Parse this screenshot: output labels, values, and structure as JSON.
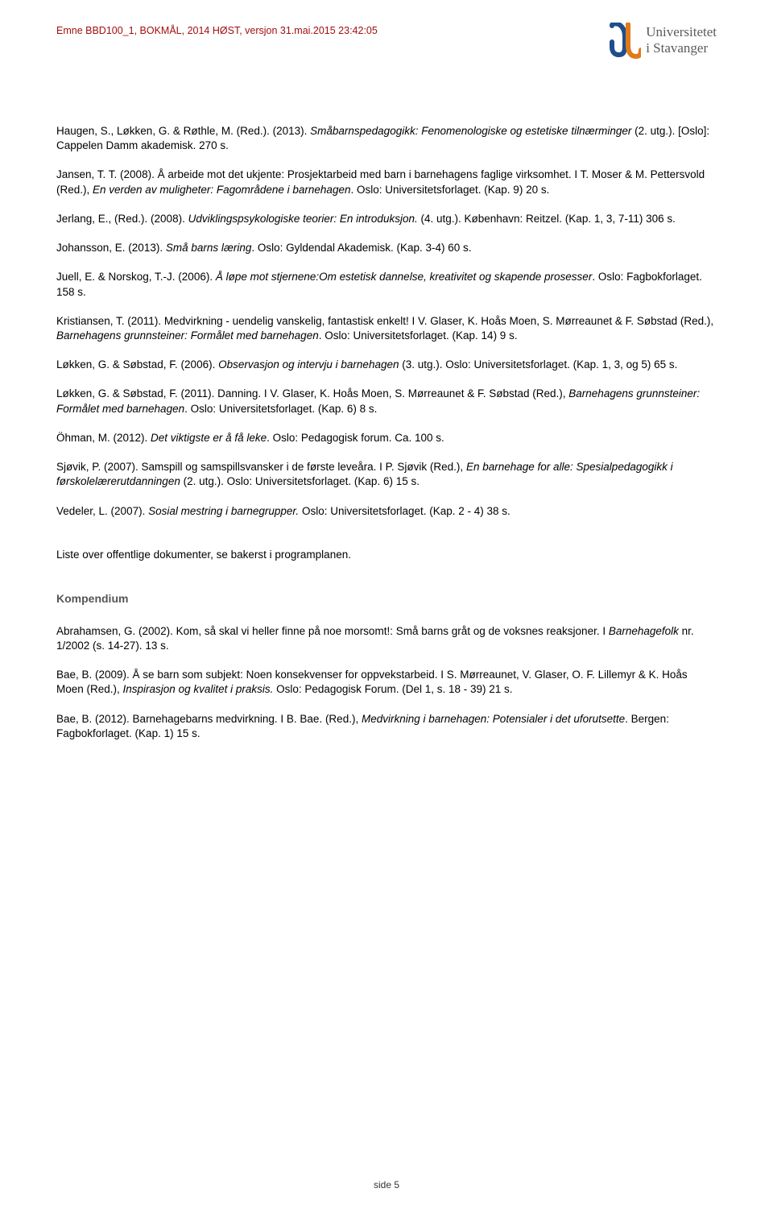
{
  "header": {
    "meta_line": "Emne BBD100_1, BOKMÅL, 2014 HØST, versjon 31.mai.2015 23:42:05",
    "uni_line1": "Universitetet",
    "uni_line2": "i Stavanger",
    "logo_color_blue": "#1f4e8c",
    "logo_color_orange": "#e07b1a"
  },
  "refs": [
    {
      "pre": "Haugen, S., Løkken, G. & Røthle, M. (Red.). (2013). ",
      "it": "Småbarnspedagogikk: Fenomenologiske og estetiske tilnærminger",
      "post": " (2. utg.). [Oslo]: Cappelen Damm akademisk. 270 s."
    },
    {
      "pre": "Jansen, T. T. (2008). Å arbeide mot det ukjente: Prosjektarbeid med barn i barnehagens faglige virksomhet. I T. Moser & M. Pettersvold   (Red.), ",
      "it": "En verden av muligheter: Fagområdene i barnehagen",
      "post": ". Oslo: Universitetsforlaget. (Kap. 9) 20 s."
    },
    {
      "pre": "Jerlang, E., (Red.). (2008). ",
      "it": "Udviklingspsykologiske teorier: En introduksjon.",
      "post": " (4. utg.). København: Reitzel. (Kap. 1, 3, 7-11) 306 s."
    },
    {
      "pre": "Johansson, E. (2013). ",
      "it": "Små barns læring",
      "post": ". Oslo: Gyldendal Akademisk. (Kap. 3-4) 60 s."
    },
    {
      "pre": "Juell, E. & Norskog, T.-J. (2006). ",
      "it": "Å løpe mot stjernene:Om estetisk dannelse, kreativitet og skapende prosesser",
      "post": ". Oslo: Fagbokforlaget. 158 s."
    },
    {
      "pre": "Kristiansen, T. (2011). Medvirkning - uendelig vanskelig, fantastisk enkelt! I V. Glaser, K. Hoås Moen, S. Mørreaunet & F. Søbstad (Red.), ",
      "it": "Barnehagens grunnsteiner: Formålet med barnehagen",
      "post": ". Oslo: Universitetsforlaget. (Kap. 14) 9 s."
    },
    {
      "pre": "Løkken, G. & Søbstad, F. (2006). ",
      "it": "Observasjon og intervju i barnehagen",
      "post": " (3. utg.). Oslo: Universitetsforlaget. (Kap. 1, 3, og 5) 65 s."
    },
    {
      "pre": "Løkken, G. & Søbstad, F. (2011). Danning. I V. Glaser, K. Hoås Moen, S. Mørreaunet & F. Søbstad (Red.), ",
      "it": "Barnehagens grunnsteiner: Formålet med barnehagen",
      "post": ". Oslo: Universitetsforlaget. (Kap. 6) 8 s."
    },
    {
      "pre": "Öhman, M. (2012). ",
      "it": "Det viktigste er å få leke",
      "post": ". Oslo: Pedagogisk forum. Ca. 100 s."
    },
    {
      "pre": "Sjøvik, P. (2007). Samspill og samspillsvansker i de første leveåra. I P. Sjøvik (Red.), ",
      "it": "En barnehage for alle: Spesialpedagogikk i førskolelærerutdanningen",
      "post": " (2. utg.). Oslo: Universitetsforlaget. (Kap. 6) 15 s."
    },
    {
      "pre": "Vedeler, L. (2007). ",
      "it": "Sosial mestring i barnegrupper.",
      "post": " Oslo: Universitetsforlaget. (Kap. 2 - 4) 38 s."
    }
  ],
  "note": "Liste over offentlige dokumenter, se bakerst i programplanen.",
  "kompendium_heading": "Kompendium",
  "kompendium": [
    {
      "pre": "Abrahamsen, G. (2002). Kom, så skal vi heller finne på noe morsomt!: Små barns gråt og de voksnes reaksjoner. I ",
      "it": "Barnehagefolk",
      "post": " nr. 1/2002 (s. 14-27). 13 s."
    },
    {
      "pre": "Bae, B. (2009). Å se barn som subjekt: Noen konsekvenser for oppvekstarbeid. I S. Mørreaunet, V. Glaser, O. F. Lillemyr & K. Hoås Moen (Red.), ",
      "it": "Inspirasjon og kvalitet i praksis.",
      "post": " Oslo: Pedagogisk Forum. (Del 1, s. 18 - 39) 21 s."
    },
    {
      "pre": "Bae, B. (2012). Barnehagebarns medvirkning. I B. Bae. (Red.), ",
      "it": "Medvirkning i barnehagen: Potensialer i det uforutsette",
      "post": ". Bergen: Fagbokforlaget. (Kap. 1) 15 s."
    }
  ],
  "footer": "side 5"
}
